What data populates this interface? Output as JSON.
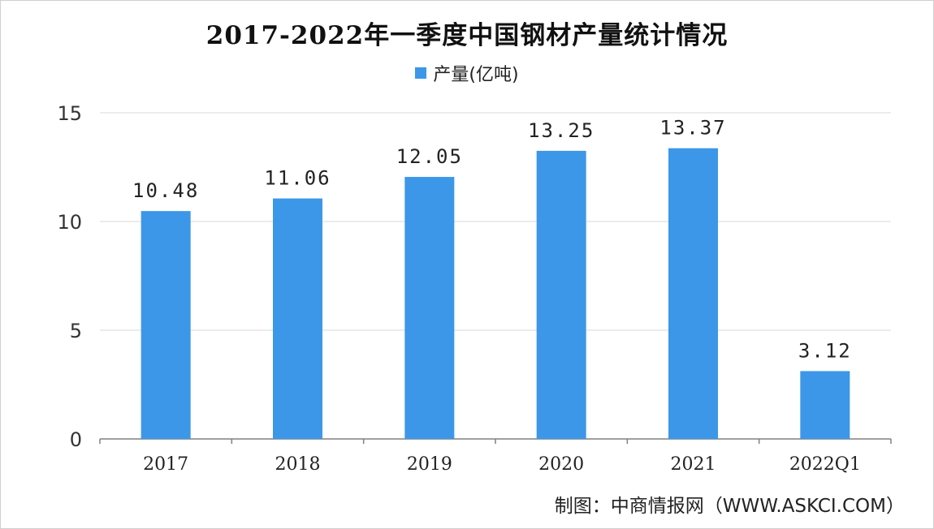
{
  "title": "2017-2022年一季度中国钢材产量统计情况",
  "legend": {
    "label": "产量(亿吨)",
    "color": "#3c97e8"
  },
  "source": "制图：中商情报网（WWW.ASKCI.COM）",
  "chart_data": {
    "type": "bar",
    "title": "2017-2022年一季度中国钢材产量统计情况",
    "categories": [
      "2017",
      "2018",
      "2019",
      "2020",
      "2021",
      "2022Q1"
    ],
    "series": [
      {
        "name": "产量(亿吨)",
        "values": [
          10.48,
          11.06,
          12.05,
          13.25,
          13.37,
          3.12
        ]
      }
    ],
    "value_labels": [
      "10.48",
      "11.06",
      "12.05",
      "13.25",
      "13.37",
      "3.12"
    ],
    "y_ticks": [
      "0",
      "5",
      "10",
      "15"
    ],
    "ylim": [
      0,
      15
    ],
    "grid": true,
    "legend_position": "top"
  }
}
